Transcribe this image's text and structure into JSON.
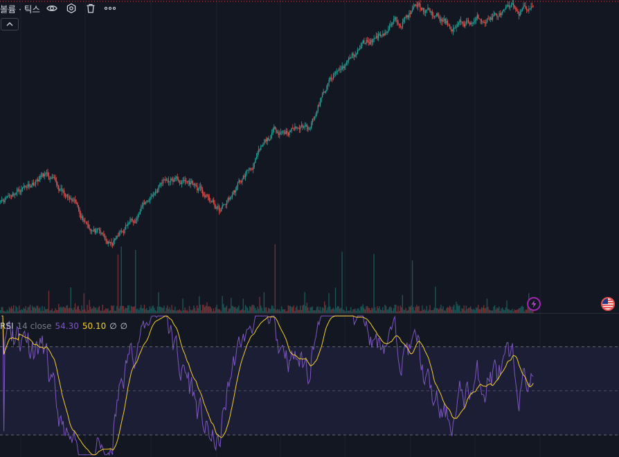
{
  "volume_legend": {
    "title": "볼륨 · 틱스",
    "buttons": [
      {
        "name": "eye-icon",
        "title": "Show / Hide"
      },
      {
        "name": "settings-icon",
        "title": "Settings"
      },
      {
        "name": "trash-icon",
        "title": "Remove"
      },
      {
        "name": "more-icon",
        "title": "More"
      }
    ],
    "collapse_icon": "chevron-up-icon"
  },
  "rsi_legend": {
    "name": "RSI",
    "params": "14 close",
    "rsi_value": "54.30",
    "ma_value": "50.10",
    "extra1": "∅",
    "extra2": "∅"
  },
  "badges": {
    "lightning": "lightning-icon",
    "flag": "us-flag-icon"
  },
  "colors": {
    "background": "#131722",
    "up": "#26a69a",
    "down": "#ef5350",
    "rsi_line": "#7e57c2",
    "rsi_ma": "#f7d02c",
    "rsi_band": "#1e1f37",
    "grid": "#1c2030"
  },
  "chart_data": [
    {
      "type": "candlestick",
      "title": "",
      "show_grid": true,
      "y_scale": "linear",
      "x": "bars (tick intervals)",
      "price_trend_anchors": [
        {
          "bar": 0,
          "close": 35
        },
        {
          "bar": 40,
          "close": 43
        },
        {
          "bar": 100,
          "close": 18
        },
        {
          "bar": 150,
          "close": 42
        },
        {
          "bar": 175,
          "close": 40
        },
        {
          "bar": 200,
          "close": 30
        },
        {
          "bar": 250,
          "close": 58
        },
        {
          "bar": 280,
          "close": 60
        },
        {
          "bar": 300,
          "close": 75
        },
        {
          "bar": 330,
          "close": 88
        },
        {
          "bar": 380,
          "close": 101
        },
        {
          "bar": 410,
          "close": 94
        },
        {
          "bar": 450,
          "close": 98
        },
        {
          "bar": 485,
          "close": 101
        }
      ]
    },
    {
      "type": "bar",
      "title": "볼륨 · 틱스",
      "note": "volume histogram at bottom of price pane, colored by candle direction",
      "spike_bars": [
        107,
        110,
        123,
        250,
        311,
        340,
        375
      ]
    },
    {
      "type": "line",
      "title": "RSI 14 close",
      "series": [
        {
          "name": "RSI",
          "last": 54.3
        },
        {
          "name": "RSI-based MA",
          "last": 50.1
        }
      ],
      "bands": [
        70,
        50,
        30
      ],
      "ylim": [
        20,
        85
      ]
    }
  ]
}
